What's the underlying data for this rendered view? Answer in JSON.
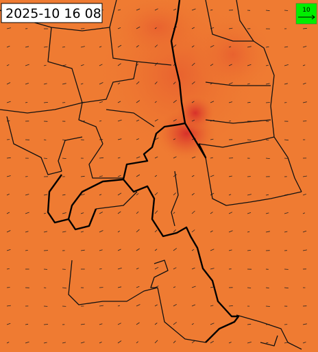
{
  "timestamp": "2025-10 16 08",
  "legend": {
    "label": "10"
  }
}
